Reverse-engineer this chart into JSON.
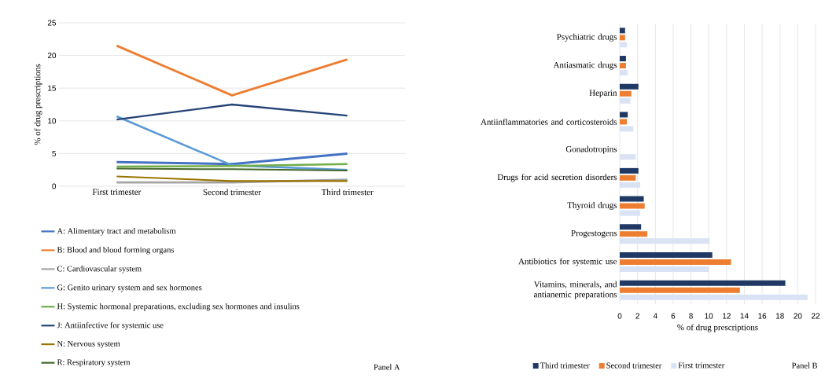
{
  "chart_data": [
    {
      "type": "line",
      "ylabel": "% of drug prescriptions",
      "categories": [
        "First trimester",
        "Second trimester",
        "Third trimester"
      ],
      "ylim": [
        0,
        25
      ],
      "yticks": [
        0,
        5,
        10,
        15,
        20,
        25
      ],
      "grid": "y",
      "legend": "bottom",
      "annotations": [
        "Panel A"
      ],
      "series": [
        {
          "name": "A: Alimentary tract and metabolism",
          "color": "#4472c4",
          "values": [
            3.7,
            3.4,
            5.0
          ]
        },
        {
          "name": "B: Blood and blood forming organs",
          "color": "#ed7d31",
          "values": [
            21.5,
            13.9,
            19.4
          ]
        },
        {
          "name": "C: Cardiovascular system",
          "color": "#a5a5a5",
          "values": [
            0.6,
            0.6,
            1.0
          ]
        },
        {
          "name": "G: Genito urinary system and sex hormones",
          "color": "#5b9bd5",
          "values": [
            10.7,
            3.2,
            2.5
          ]
        },
        {
          "name": "H: Systemic hormonal preparations, excluding sex hormones and insulins",
          "color": "#70ad47",
          "values": [
            3.0,
            3.1,
            3.4
          ]
        },
        {
          "name": "J: Antiinfective for systemic use",
          "color": "#264478",
          "values": [
            10.2,
            12.5,
            10.8
          ]
        },
        {
          "name": "N: Nervous system",
          "color": "#997300",
          "values": [
            1.5,
            0.8,
            0.8
          ]
        },
        {
          "name": "R: Respiratory system",
          "color": "#43682b",
          "values": [
            2.7,
            2.6,
            2.4
          ]
        }
      ]
    },
    {
      "type": "bar",
      "orientation": "horizontal",
      "xlabel": "% of drug prescriptions",
      "categories": [
        "Psychiatric drugs",
        "Antiasmatic drugs",
        "Heparin",
        "Antiinflammatories and corticosteroids",
        "Gonadotropins",
        "Drugs for acid secretion disorders",
        "Thyroid drugs",
        "Progestogens",
        "Antibiotics for systemic use",
        "Vitamins, minerals, and antianemic preparations"
      ],
      "xlim": [
        0,
        22
      ],
      "xticks": [
        0,
        2,
        4,
        6,
        8,
        10,
        12,
        14,
        16,
        18,
        20,
        22
      ],
      "grid": "x",
      "legend": "bottom",
      "annotations": [
        "Panel B"
      ],
      "series": [
        {
          "name": "Third trimester",
          "color": "#203864",
          "values": [
            0.6,
            0.7,
            2.1,
            0.9,
            0,
            2.1,
            2.7,
            2.4,
            10.4,
            18.6
          ]
        },
        {
          "name": "Second trimester",
          "color": "#ed7d31",
          "values": [
            0.6,
            0.7,
            1.3,
            0.8,
            0,
            1.8,
            2.8,
            3.1,
            12.5,
            13.5
          ]
        },
        {
          "name": "First trimester",
          "color": "#dae3f3",
          "values": [
            0.8,
            0.9,
            1.2,
            1.5,
            1.8,
            2.3,
            2.3,
            10.1,
            10.0,
            21.1
          ]
        }
      ]
    }
  ]
}
